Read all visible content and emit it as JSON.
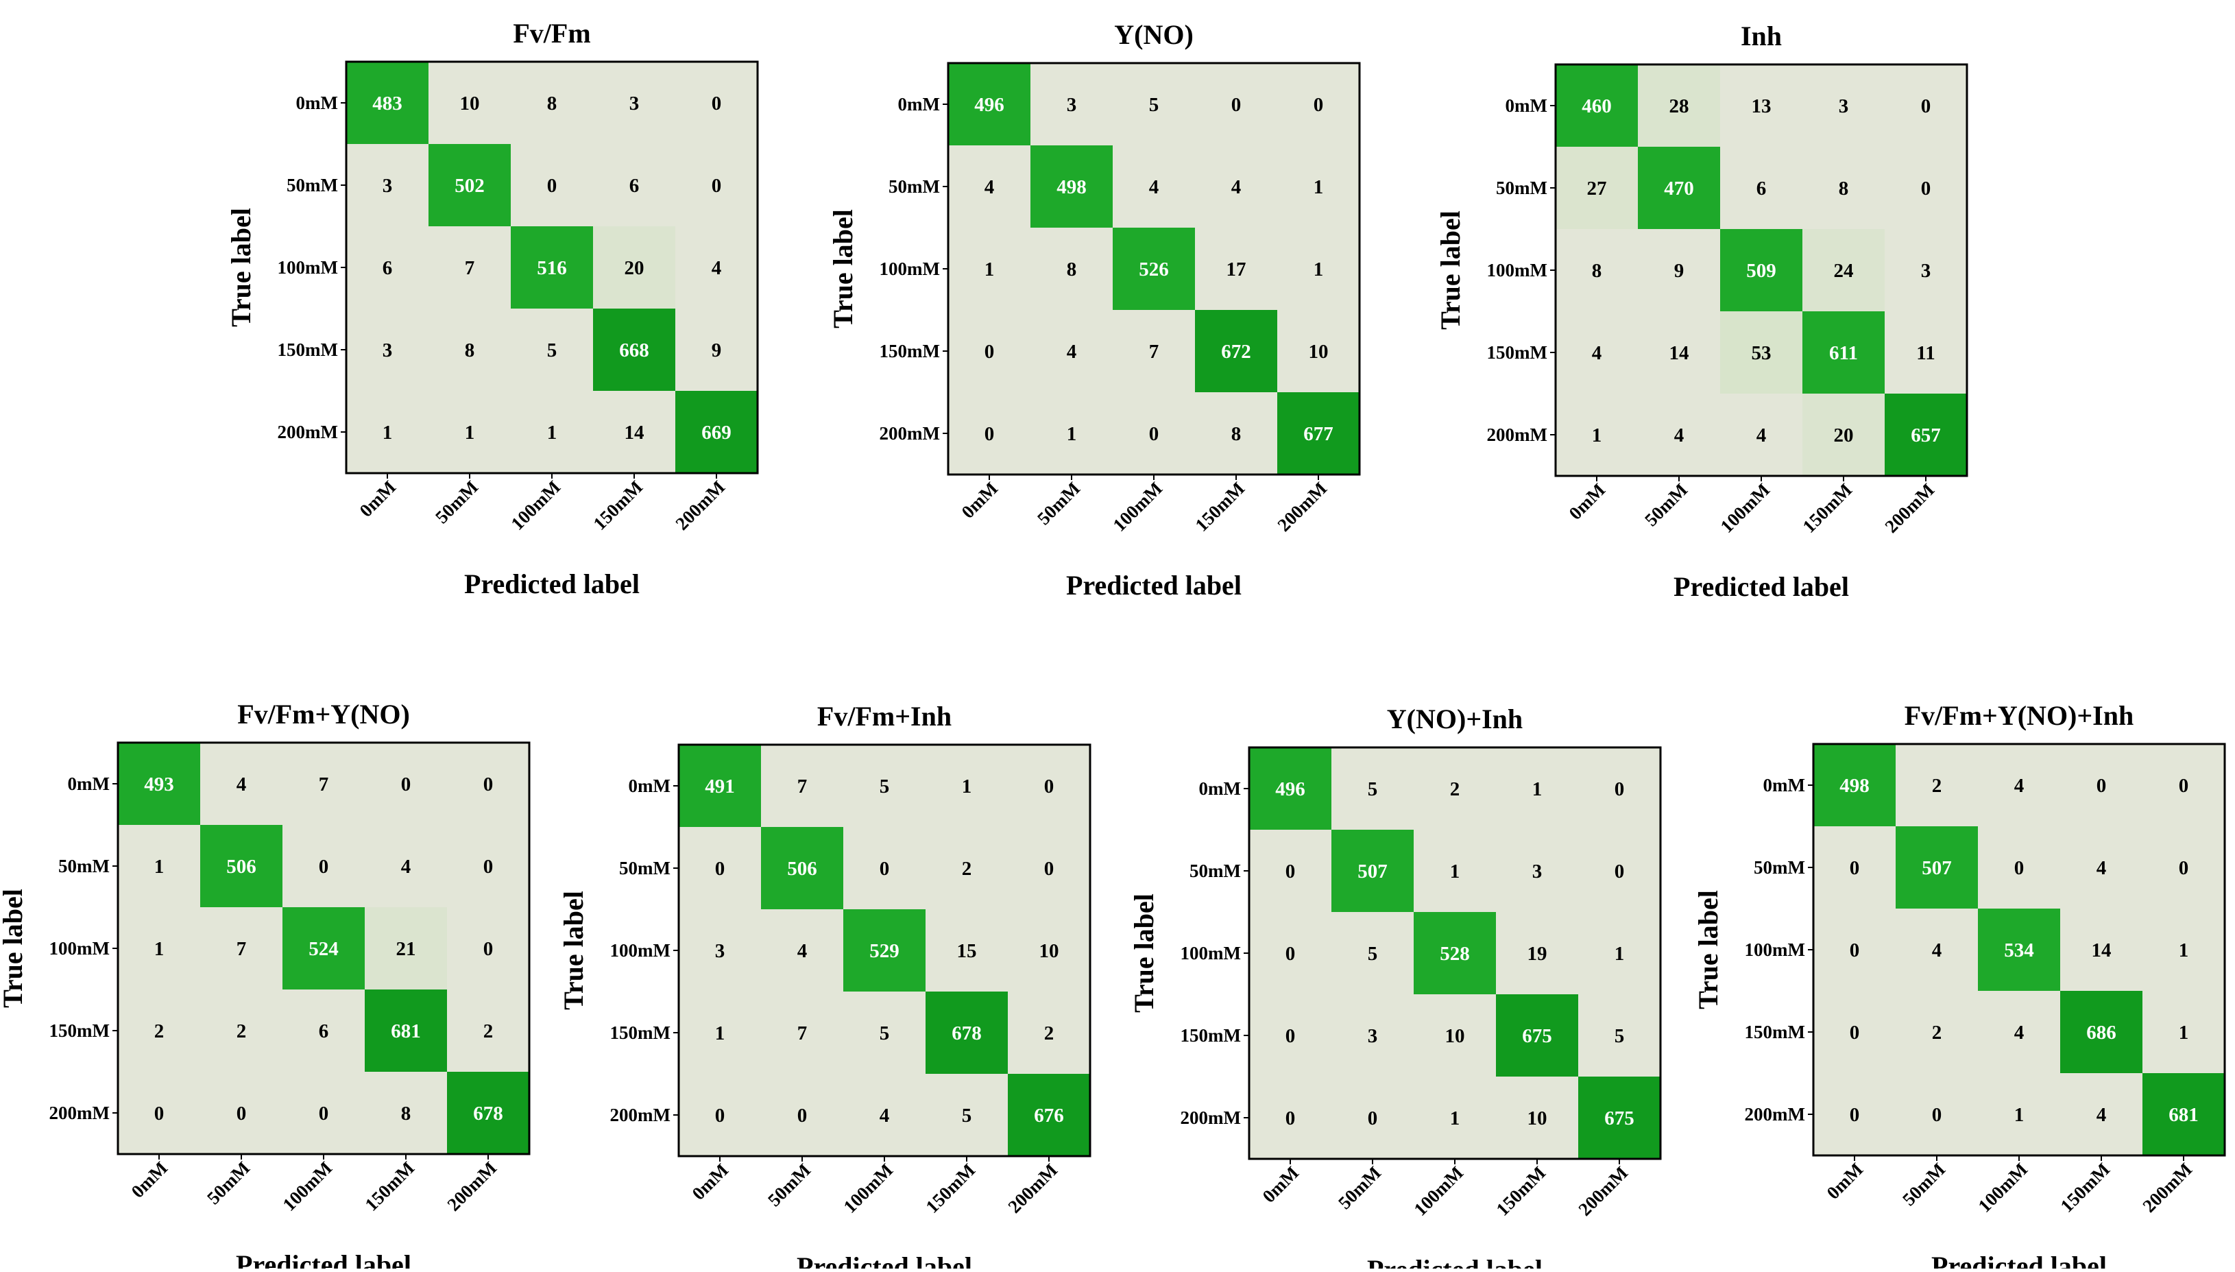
{
  "figure": {
    "colors": {
      "background_cell": "#e3e6d8",
      "low_cell": "#d5e3c8",
      "high_cell": "#1ea92a",
      "peak_cell": "#119a1e",
      "text_dark": "#000000",
      "text_light": "#ffffff",
      "frame": "#000000"
    }
  },
  "chart_data": [
    {
      "type": "heatmap",
      "title": "Fv/Fm",
      "xlabel": "Predicted label",
      "ylabel": "True label",
      "x_categories": [
        "0mM",
        "50mM",
        "100mM",
        "150mM",
        "200mM"
      ],
      "y_categories": [
        "0mM",
        "50mM",
        "100mM",
        "150mM",
        "200mM"
      ],
      "values": [
        [
          483,
          10,
          8,
          3,
          0
        ],
        [
          3,
          502,
          0,
          6,
          0
        ],
        [
          6,
          7,
          516,
          20,
          4
        ],
        [
          3,
          8,
          5,
          668,
          9
        ],
        [
          1,
          1,
          1,
          14,
          669
        ]
      ]
    },
    {
      "type": "heatmap",
      "title": "Y(NO)",
      "xlabel": "Predicted label",
      "ylabel": "True label",
      "x_categories": [
        "0mM",
        "50mM",
        "100mM",
        "150mM",
        "200mM"
      ],
      "y_categories": [
        "0mM",
        "50mM",
        "100mM",
        "150mM",
        "200mM"
      ],
      "values": [
        [
          496,
          3,
          5,
          0,
          0
        ],
        [
          4,
          498,
          4,
          4,
          1
        ],
        [
          1,
          8,
          526,
          17,
          1
        ],
        [
          0,
          4,
          7,
          672,
          10
        ],
        [
          0,
          1,
          0,
          8,
          677
        ]
      ]
    },
    {
      "type": "heatmap",
      "title": "Inh",
      "xlabel": "Predicted label",
      "ylabel": "True label",
      "x_categories": [
        "0mM",
        "50mM",
        "100mM",
        "150mM",
        "200mM"
      ],
      "y_categories": [
        "0mM",
        "50mM",
        "100mM",
        "150mM",
        "200mM"
      ],
      "values": [
        [
          460,
          28,
          13,
          3,
          0
        ],
        [
          27,
          470,
          6,
          8,
          0
        ],
        [
          8,
          9,
          509,
          24,
          3
        ],
        [
          4,
          14,
          53,
          611,
          11
        ],
        [
          1,
          4,
          4,
          20,
          657
        ]
      ]
    },
    {
      "type": "heatmap",
      "title": "Fv/Fm+Y(NO)",
      "xlabel": "Predicted label",
      "ylabel": "True label",
      "x_categories": [
        "0mM",
        "50mM",
        "100mM",
        "150mM",
        "200mM"
      ],
      "y_categories": [
        "0mM",
        "50mM",
        "100mM",
        "150mM",
        "200mM"
      ],
      "values": [
        [
          493,
          4,
          7,
          0,
          0
        ],
        [
          1,
          506,
          0,
          4,
          0
        ],
        [
          1,
          7,
          524,
          21,
          0
        ],
        [
          2,
          2,
          6,
          681,
          2
        ],
        [
          0,
          0,
          0,
          8,
          678
        ]
      ]
    },
    {
      "type": "heatmap",
      "title": "Fv/Fm+Inh",
      "xlabel": "Predicted label",
      "ylabel": "True label",
      "x_categories": [
        "0mM",
        "50mM",
        "100mM",
        "150mM",
        "200mM"
      ],
      "y_categories": [
        "0mM",
        "50mM",
        "100mM",
        "150mM",
        "200mM"
      ],
      "values": [
        [
          491,
          7,
          5,
          1,
          0
        ],
        [
          0,
          506,
          0,
          2,
          0
        ],
        [
          3,
          4,
          529,
          15,
          10
        ],
        [
          1,
          7,
          5,
          678,
          2
        ],
        [
          0,
          0,
          4,
          5,
          676
        ]
      ]
    },
    {
      "type": "heatmap",
      "title": "Y(NO)+Inh",
      "xlabel": "Predicted label",
      "ylabel": "True label",
      "x_categories": [
        "0mM",
        "50mM",
        "100mM",
        "150mM",
        "200mM"
      ],
      "y_categories": [
        "0mM",
        "50mM",
        "100mM",
        "150mM",
        "200mM"
      ],
      "values": [
        [
          496,
          5,
          2,
          1,
          0
        ],
        [
          0,
          507,
          1,
          3,
          0
        ],
        [
          0,
          5,
          528,
          19,
          1
        ],
        [
          0,
          3,
          10,
          675,
          5
        ],
        [
          0,
          0,
          1,
          10,
          675
        ]
      ]
    },
    {
      "type": "heatmap",
      "title": "Fv/Fm+Y(NO)+Inh",
      "xlabel": "Predicted label",
      "ylabel": "True label",
      "x_categories": [
        "0mM",
        "50mM",
        "100mM",
        "150mM",
        "200mM"
      ],
      "y_categories": [
        "0mM",
        "50mM",
        "100mM",
        "150mM",
        "200mM"
      ],
      "values": [
        [
          498,
          2,
          4,
          0,
          0
        ],
        [
          0,
          507,
          0,
          4,
          0
        ],
        [
          0,
          4,
          534,
          14,
          1
        ],
        [
          0,
          2,
          4,
          686,
          1
        ],
        [
          0,
          0,
          1,
          4,
          681
        ]
      ]
    }
  ]
}
